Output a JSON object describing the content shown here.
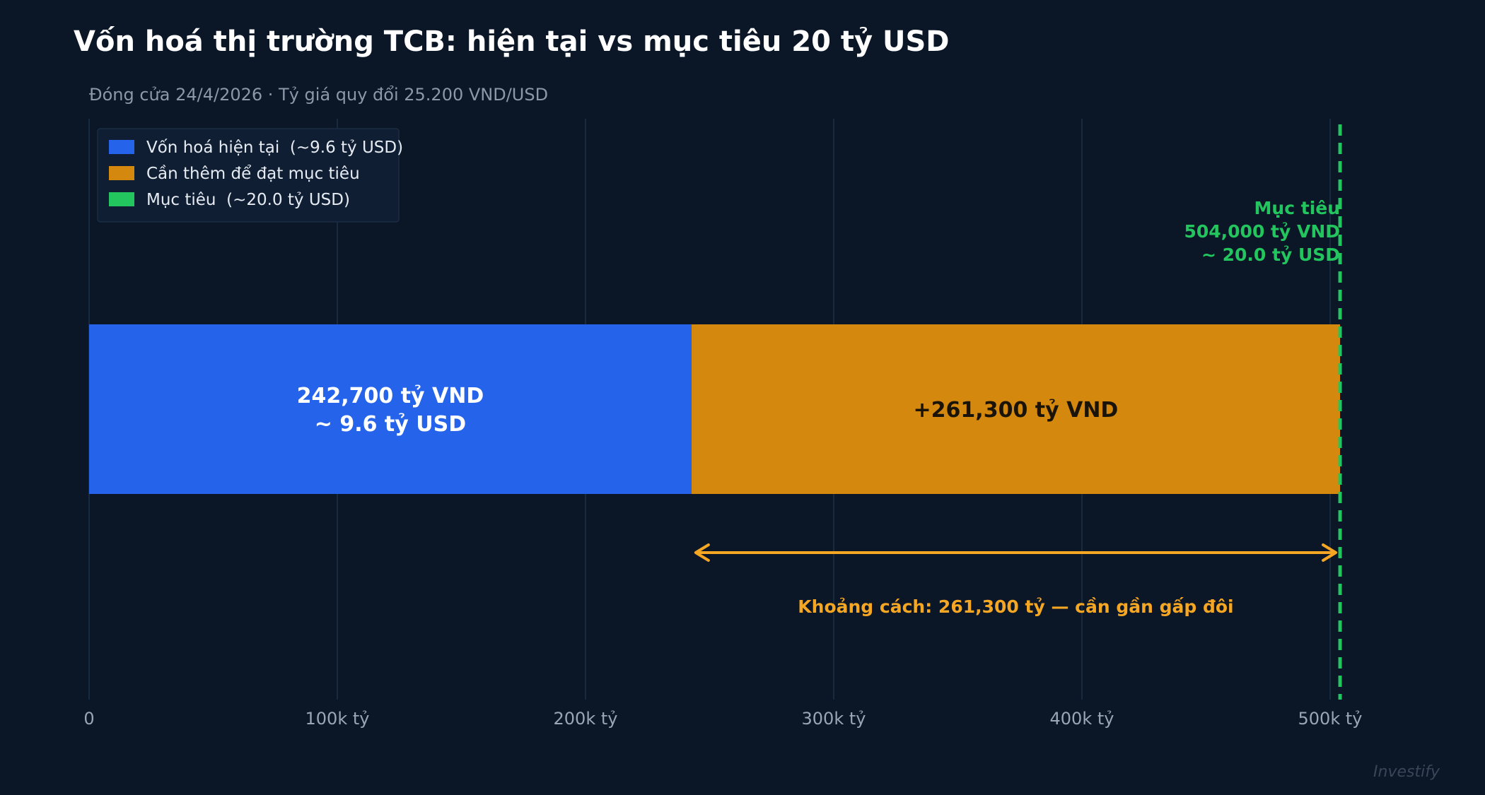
{
  "colors": {
    "background": "#0b1627",
    "current": "#2563eb",
    "gap": "#d4880d",
    "target": "#22c55e",
    "gap_text": "#f5a623",
    "grid": "#1c3049",
    "tick": "#9aa5b5"
  },
  "chart_data": {
    "type": "bar",
    "orientation": "horizontal",
    "stacked": true,
    "title": "Vốn hoá thị trường TCB: hiện tại vs mục tiêu 20 tỷ USD",
    "subtitle": "Đóng cửa 24/4/2026 · Tỷ giá quy đổi 25.200 VND/USD",
    "xlim": [
      0,
      560000
    ],
    "xticks": [
      {
        "value": 0,
        "label": "0"
      },
      {
        "value": 100000,
        "label": "100k tỷ"
      },
      {
        "value": 200000,
        "label": "200k tỷ"
      },
      {
        "value": 300000,
        "label": "300k tỷ"
      },
      {
        "value": 400000,
        "label": "400k tỷ"
      },
      {
        "value": 500000,
        "label": "500k tỷ"
      }
    ],
    "grid": true,
    "legend_position": "top-left",
    "series": [
      {
        "name": "Vốn hoá hiện tại  (~9.6 tỷ USD)",
        "value": 242700,
        "label_lines": [
          "242,700 tỷ VND",
          "~ 9.6 tỷ USD"
        ]
      },
      {
        "name": "Cần thêm để đạt mục tiêu",
        "value": 261300,
        "label_lines": [
          "+261,300 tỷ VND"
        ]
      }
    ],
    "target": {
      "name": "Mục tiêu  (~20.0 tỷ USD)",
      "value": 504000,
      "label_lines": [
        "Mục tiêu",
        "504,000 tỷ VND",
        "~ 20.0 tỷ USD"
      ]
    },
    "gap_annotation": {
      "from": 242700,
      "to": 504000,
      "text": "Khoảng cách: 261,300 tỷ — cần gần gấp đôi"
    }
  },
  "watermark": "Investify"
}
